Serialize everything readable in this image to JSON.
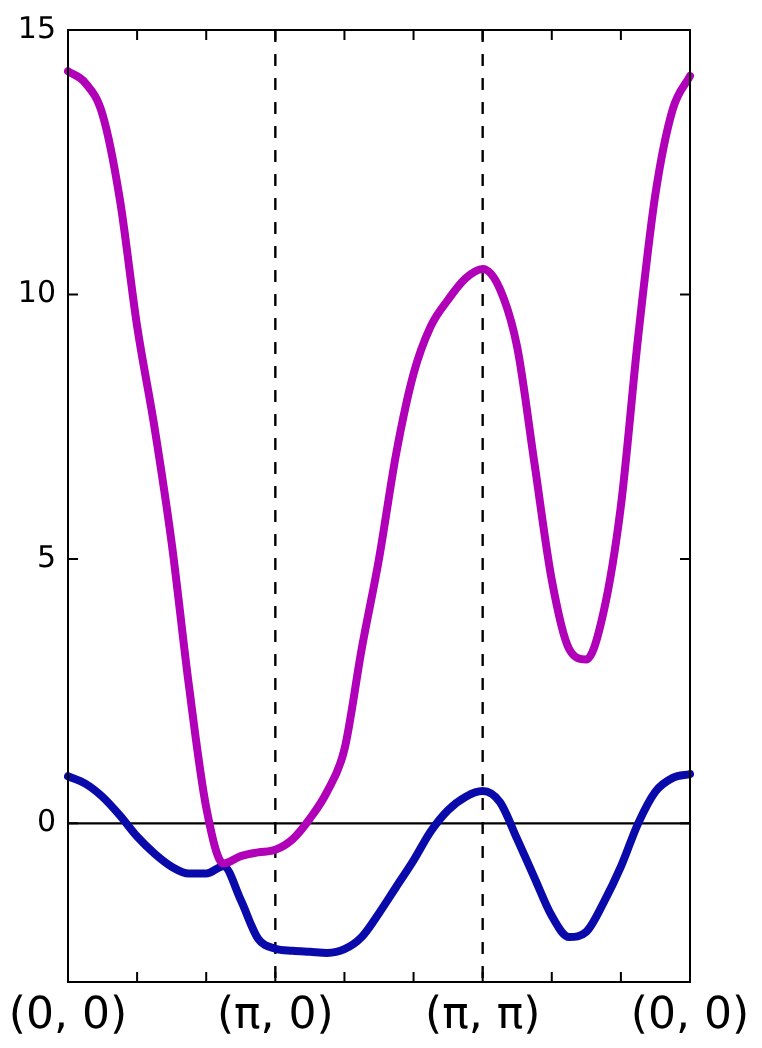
{
  "chart_data": {
    "type": "line",
    "ylim": [
      -3,
      15
    ],
    "categories": [
      "(0, 0)",
      null,
      null,
      null,
      null,
      null,
      null,
      null,
      null,
      null,
      null,
      null,
      "(π, 0)",
      null,
      null,
      null,
      null,
      null,
      null,
      null,
      null,
      null,
      null,
      null,
      "(π, π)",
      null,
      null,
      null,
      null,
      null,
      null,
      null,
      null,
      null,
      null,
      null,
      "(0, 0)"
    ],
    "yticks": [
      0,
      5,
      10,
      15
    ],
    "grid": false,
    "legend": false,
    "marker": "none",
    "line_style": "solid",
    "ref_lines": [
      {
        "axis": "x",
        "value": "(π, 0)",
        "color": "#000000",
        "line_style": "dashed"
      },
      {
        "axis": "x",
        "value": "(π, π)",
        "color": "#000000",
        "line_style": "dashed"
      },
      {
        "axis": "y",
        "value": 0,
        "color": "#000000",
        "line_style": "solid"
      }
    ],
    "series": [
      {
        "color": "#b000b8",
        "values": [
          14.22,
          14.0,
          13.4,
          11.8,
          9.4,
          7.5,
          5.3,
          2.6,
          0.3,
          -0.76,
          -0.62,
          -0.55,
          -0.5,
          -0.3,
          0.09,
          0.6,
          1.4,
          3.3,
          5.0,
          7.0,
          8.5,
          9.4,
          9.9,
          10.3,
          10.48,
          10.1,
          9.0,
          6.8,
          4.6,
          3.3,
          3.1,
          4.0,
          6.0,
          9.2,
          11.9,
          13.5,
          14.13
        ]
      },
      {
        "color": "#0a0aaa",
        "values": [
          0.89,
          0.75,
          0.5,
          0.15,
          -0.25,
          -0.57,
          -0.82,
          -0.95,
          -0.95,
          -0.81,
          -1.45,
          -2.18,
          -2.37,
          -2.41,
          -2.43,
          -2.45,
          -2.38,
          -2.15,
          -1.7,
          -1.2,
          -0.7,
          -0.15,
          0.25,
          0.5,
          0.61,
          0.4,
          -0.3,
          -1.03,
          -1.75,
          -2.15,
          -2.05,
          -1.5,
          -0.82,
          0,
          0.6,
          0.86,
          0.93
        ]
      }
    ]
  }
}
